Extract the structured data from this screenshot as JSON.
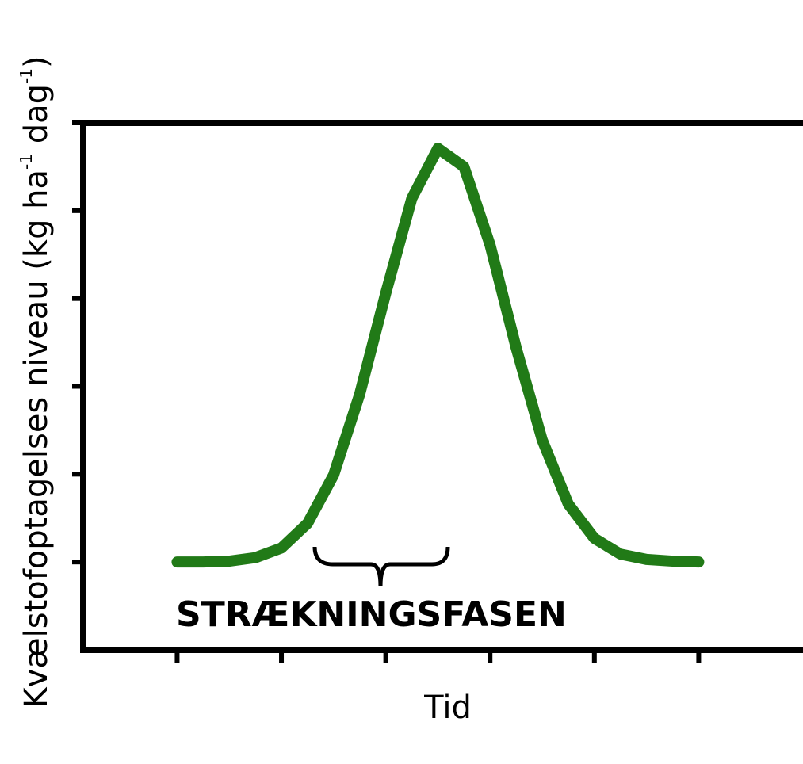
{
  "chart_data": {
    "type": "line",
    "y_label": [
      "Kvælstofoptagelses niveau (kg ha",
      "-1",
      " dag",
      "-1",
      ")"
    ],
    "x_label": "Tid",
    "annotation": "STRÆKNINGSFASEN",
    "x": [
      0,
      0.25,
      0.5,
      0.75,
      1,
      1.25,
      1.5,
      1.75,
      2,
      2.25,
      2.5,
      2.75,
      3,
      3.25,
      3.5,
      3.75,
      4,
      4.25,
      4.5,
      4.75,
      5
    ],
    "series": [
      {
        "color": "#217a17",
        "values": [
          1.0,
          1.0,
          1.01,
          1.05,
          1.16,
          1.44,
          1.99,
          2.91,
          4.06,
          5.14,
          5.71,
          5.5,
          4.61,
          3.44,
          2.39,
          1.66,
          1.27,
          1.09,
          1.03,
          1.01,
          1.0
        ]
      }
    ],
    "xlim": [
      -0.9,
      6
    ],
    "ylim": [
      0,
      6
    ],
    "xticks": [
      0,
      1,
      2,
      3,
      4,
      5
    ],
    "yticks": [
      1,
      2,
      3,
      4,
      5,
      6
    ]
  }
}
